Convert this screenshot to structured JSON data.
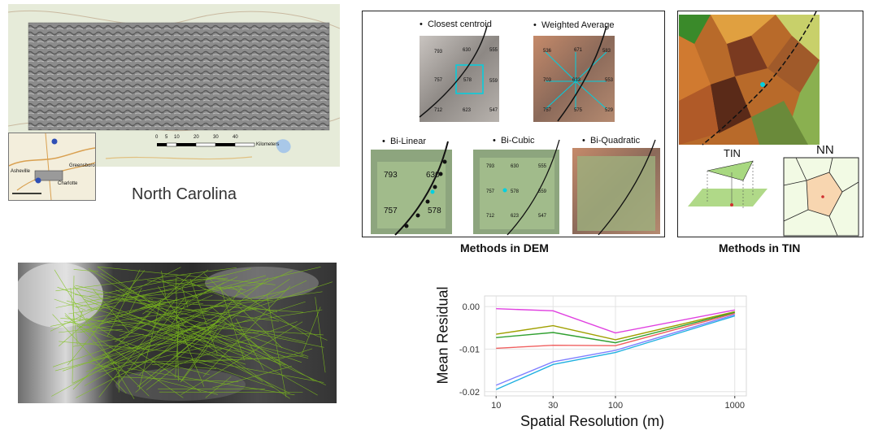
{
  "map_panel": {
    "region_label": "North Carolina",
    "scale_ticks": [
      "0",
      "5",
      "10",
      "20",
      "30",
      "40"
    ],
    "scale_unit": "Kilometers",
    "inset_labels": {
      "city_1": "Asheville",
      "city_2": "Greensboro",
      "city_3": "Charlotte",
      "highway": "40"
    }
  },
  "dem_panel": {
    "caption": "Methods in DEM",
    "methods": [
      {
        "label": "Closest centroid",
        "values": [
          "793",
          "630",
          "555",
          "757",
          "578",
          "559",
          "712",
          "623",
          "547"
        ]
      },
      {
        "label": "Weighted Average",
        "values": [
          "536",
          "671",
          "583",
          "703",
          "633",
          "553",
          "757",
          "575",
          "529"
        ]
      },
      {
        "label": "Bi-Linear",
        "values": [
          "793",
          "630",
          "757",
          "578"
        ]
      },
      {
        "label": "Bi-Cubic",
        "values": [
          "793",
          "630",
          "555",
          "757",
          "578",
          "559",
          "712",
          "623",
          "547"
        ]
      },
      {
        "label": "Bi-Quadratic",
        "values": []
      }
    ]
  },
  "tin_panel": {
    "caption": "Methods in TIN",
    "tin_label": "TIN",
    "nn_label": "NN"
  },
  "chart_data": {
    "type": "line",
    "xlabel": "Spatial Resolution (m)",
    "ylabel": "Mean Residual",
    "x": [
      10,
      30,
      100,
      1000
    ],
    "x_scale": "log",
    "xlim": [
      8,
      1250
    ],
    "ylim": [
      -0.021,
      0.0025
    ],
    "y_ticks": [
      "0.00",
      "-0.01",
      "-0.02"
    ],
    "x_ticks": [
      "10",
      "30",
      "100",
      "1000"
    ],
    "grid": true,
    "series": [
      {
        "color": "#e040e0",
        "values": [
          -0.0005,
          -0.001,
          -0.0062,
          -0.0008
        ]
      },
      {
        "color": "#a0a000",
        "values": [
          -0.0065,
          -0.0045,
          -0.0078,
          -0.0012
        ]
      },
      {
        "color": "#30a030",
        "values": [
          -0.0073,
          -0.0061,
          -0.0085,
          -0.0014
        ]
      },
      {
        "color": "#f06060",
        "values": [
          -0.0098,
          -0.0091,
          -0.0092,
          -0.0016
        ]
      },
      {
        "color": "#8080ff",
        "values": [
          -0.0185,
          -0.013,
          -0.0103,
          -0.0019
        ]
      },
      {
        "color": "#20b0e0",
        "values": [
          -0.0195,
          -0.0136,
          -0.0108,
          -0.0022
        ]
      }
    ]
  }
}
